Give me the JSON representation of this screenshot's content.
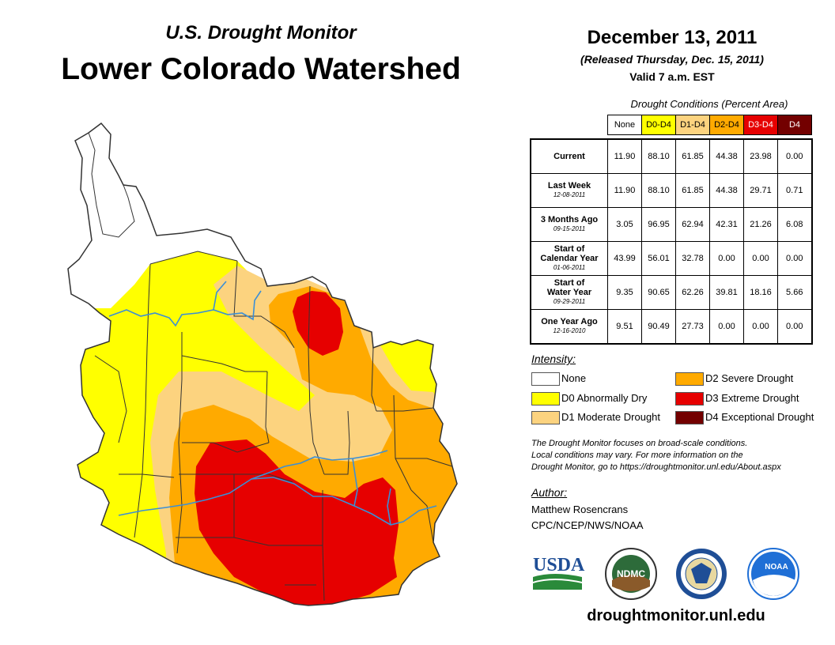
{
  "header": {
    "subtitle": "U.S. Drought Monitor",
    "title": "Lower Colorado Watershed",
    "date": "December 13, 2011",
    "released": "(Released Thursday, Dec. 15, 2011)",
    "valid": "Valid 7 a.m. EST"
  },
  "table": {
    "caption": "Drought Conditions (Percent Area)",
    "columns": [
      "None",
      "D0-D4",
      "D1-D4",
      "D2-D4",
      "D3-D4",
      "D4"
    ],
    "column_colors": [
      "#ffffff",
      "#ffff00",
      "#fcd37f",
      "#ffaa00",
      "#e60000",
      "#730000"
    ],
    "rows": [
      {
        "label": "Current",
        "date": "",
        "values": [
          "11.90",
          "88.10",
          "61.85",
          "44.38",
          "23.98",
          "0.00"
        ]
      },
      {
        "label": "Last Week",
        "date": "12-08-2011",
        "values": [
          "11.90",
          "88.10",
          "61.85",
          "44.38",
          "29.71",
          "0.71"
        ]
      },
      {
        "label": "3 Months Ago",
        "date": "09-15-2011",
        "values": [
          "3.05",
          "96.95",
          "62.94",
          "42.31",
          "21.26",
          "6.08"
        ]
      },
      {
        "label": "Start of Calendar Year",
        "label_lines": [
          "Start of",
          "Calendar Year"
        ],
        "date": "01-06-2011",
        "values": [
          "43.99",
          "56.01",
          "32.78",
          "0.00",
          "0.00",
          "0.00"
        ]
      },
      {
        "label": "Start of Water Year",
        "label_lines": [
          "Start of",
          "Water Year"
        ],
        "date": "09-29-2011",
        "values": [
          "9.35",
          "90.65",
          "62.26",
          "39.81",
          "18.16",
          "5.66"
        ]
      },
      {
        "label": "One Year Ago",
        "date": "12-16-2010",
        "values": [
          "9.51",
          "90.49",
          "27.73",
          "0.00",
          "0.00",
          "0.00"
        ]
      }
    ]
  },
  "legend": {
    "title": "Intensity:",
    "items": [
      {
        "label": "None",
        "color": "#ffffff"
      },
      {
        "label": "D0 Abnormally Dry",
        "color": "#ffff00"
      },
      {
        "label": "D1 Moderate Drought",
        "color": "#fcd37f"
      },
      {
        "label": "D2 Severe Drought",
        "color": "#ffaa00"
      },
      {
        "label": "D3 Extreme Drought",
        "color": "#e60000"
      },
      {
        "label": "D4 Exceptional Drought",
        "color": "#730000"
      }
    ]
  },
  "note": {
    "line1": "The Drought Monitor focuses on broad-scale conditions.",
    "line2": "Local conditions may vary. For more information on the",
    "line3": "Drought Monitor, go to https://droughtmonitor.unl.edu/About.aspx"
  },
  "author": {
    "title": "Author:",
    "name": "Matthew Rosencrans",
    "org": "CPC/NCEP/NWS/NOAA"
  },
  "logos": {
    "usda": "USDA",
    "ndmc": "NDMC",
    "noaa": "NOAA"
  },
  "footer": {
    "website": "droughtmonitor.unl.edu"
  },
  "map_colors": {
    "none": "#ffffff",
    "d0": "#ffff00",
    "d1": "#fcd37f",
    "d2": "#ffaa00",
    "d3": "#e60000",
    "river": "#3b8fd6"
  }
}
